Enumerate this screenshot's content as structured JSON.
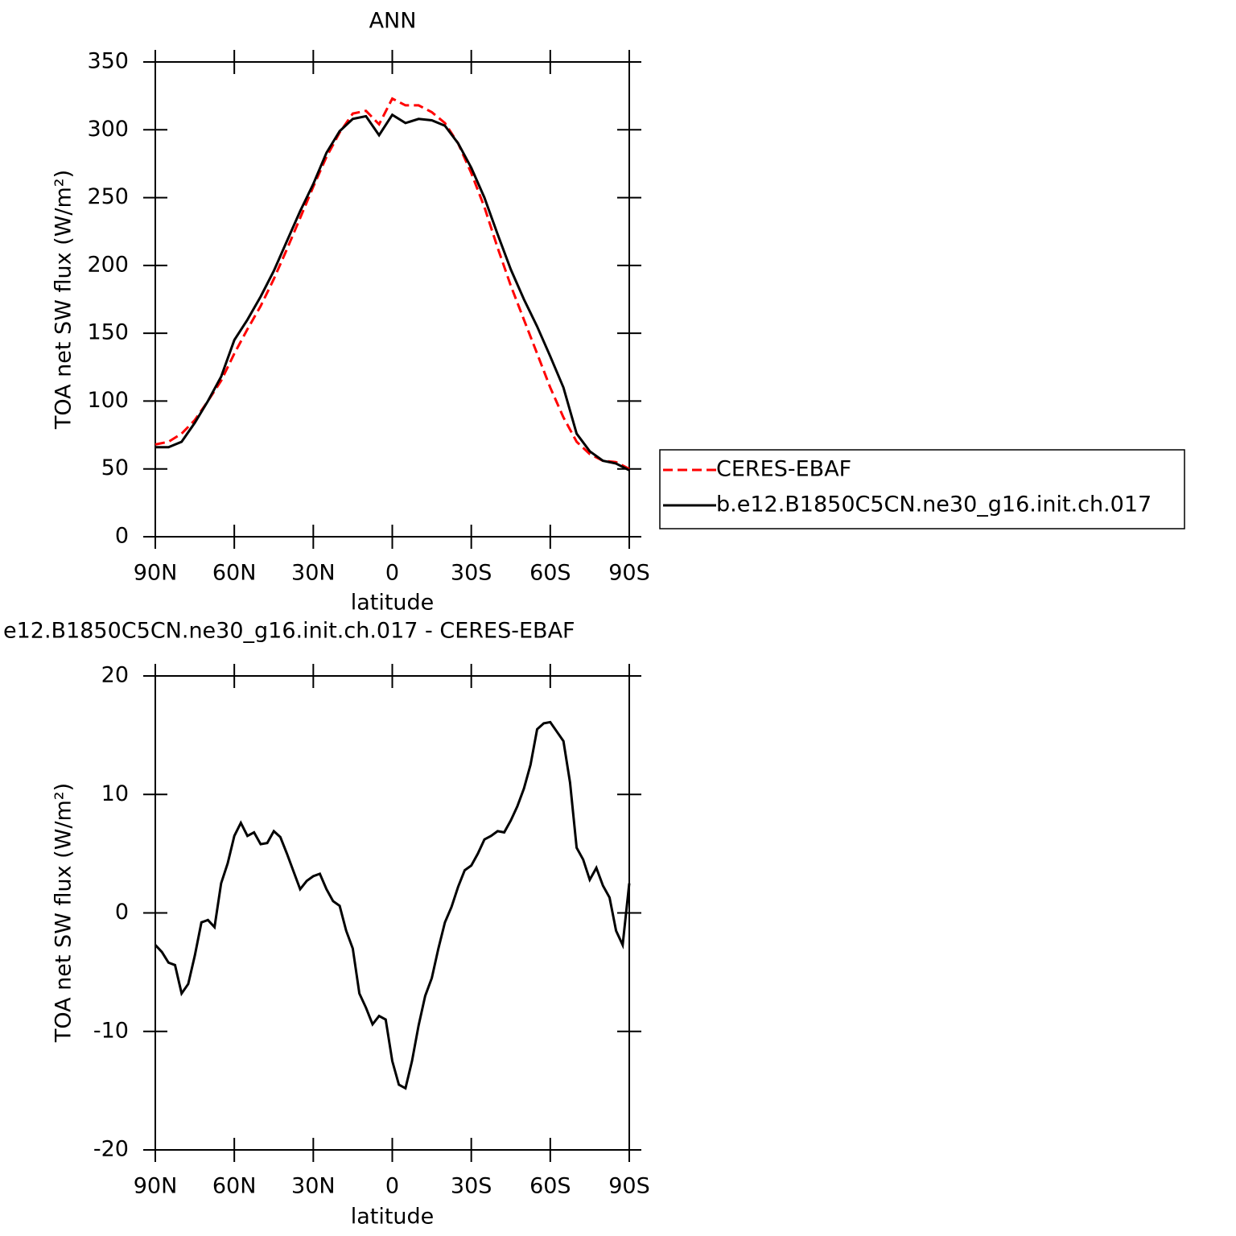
{
  "chart_data": [
    {
      "type": "line",
      "title": "ANN",
      "xlabel": "latitude",
      "ylabel": "TOA net SW flux (W/m²)",
      "x": [
        90,
        85,
        80,
        75,
        70,
        65,
        60,
        55,
        50,
        45,
        40,
        35,
        30,
        25,
        20,
        15,
        10,
        5,
        0,
        -5,
        -10,
        -15,
        -20,
        -25,
        -30,
        -35,
        -40,
        -45,
        -50,
        -55,
        -60,
        -65,
        -70,
        -75,
        -80,
        -85,
        -90
      ],
      "series": [
        {
          "name": "CERES-EBAF",
          "color": "#ff0000",
          "line_style": "dashed",
          "values": [
            68,
            70,
            76,
            86,
            100,
            115,
            135,
            153,
            170,
            190,
            212,
            235,
            258,
            280,
            298,
            312,
            314,
            304,
            323,
            318,
            318,
            313,
            305,
            290,
            268,
            243,
            213,
            185,
            160,
            135,
            110,
            88,
            70,
            61,
            56,
            55,
            50
          ]
        },
        {
          "name": "b.e12.B1850C5CN.ne30_g16.init.ch.017",
          "color": "#000000",
          "line_style": "solid",
          "values": [
            66,
            66,
            70,
            84,
            100,
            118,
            145,
            160,
            177,
            196,
            218,
            240,
            260,
            283,
            299,
            308,
            310,
            296,
            311,
            305,
            308,
            307,
            303,
            290,
            272,
            250,
            223,
            197,
            175,
            155,
            133,
            110,
            76,
            63,
            56,
            54,
            49
          ]
        }
      ],
      "xlim": [
        90,
        -90
      ],
      "xticks": [
        {
          "value": 90,
          "label": "90N"
        },
        {
          "value": 60,
          "label": "60N"
        },
        {
          "value": 30,
          "label": "30N"
        },
        0,
        {
          "value": -30,
          "label": "30S"
        },
        {
          "value": -60,
          "label": "60S"
        },
        {
          "value": -90,
          "label": "90S"
        }
      ],
      "ylim": [
        0,
        350
      ],
      "yticks": [
        0,
        50,
        100,
        150,
        200,
        250,
        300,
        350
      ],
      "grid": false,
      "legend": "right"
    },
    {
      "type": "line",
      "title": "e12.B1850C5CN.ne30_g16.init.ch.017 - CERES-EBAF",
      "xlabel": "latitude",
      "ylabel": "TOA net SW flux (W/m²)",
      "x": [
        90,
        87.5,
        85,
        82.5,
        80,
        77.5,
        75,
        72.5,
        70,
        67.5,
        65,
        62.5,
        60,
        57.5,
        55,
        52.5,
        50,
        47.5,
        45,
        42.5,
        40,
        37.5,
        35,
        32.5,
        30,
        27.5,
        25,
        22.5,
        20,
        17.5,
        15,
        12.5,
        10,
        7.5,
        5,
        2.5,
        0,
        -2.5,
        -5,
        -7.5,
        -10,
        -12.5,
        -15,
        -17.5,
        -20,
        -22.5,
        -25,
        -27.5,
        -30,
        -32.5,
        -35,
        -37.5,
        -40,
        -42.5,
        -45,
        -47.5,
        -50,
        -52.5,
        -55,
        -57.5,
        -60,
        -62.5,
        -65,
        -67.5,
        -70,
        -72.5,
        -75,
        -77.5,
        -80,
        -82.5,
        -85,
        -87.5,
        -90
      ],
      "values": [
        -2.7,
        -3.3,
        -4.2,
        -4.4,
        -6.8,
        -6.0,
        -3.6,
        -0.8,
        -0.6,
        -1.2,
        2.5,
        4.2,
        6.5,
        7.6,
        6.5,
        6.8,
        5.8,
        5.9,
        6.9,
        6.4,
        5.0,
        3.5,
        2.0,
        2.7,
        3.1,
        3.3,
        2.0,
        1.0,
        0.6,
        -1.5,
        -3.0,
        -6.8,
        -8.0,
        -9.4,
        -8.7,
        -9.0,
        -12.5,
        -14.5,
        -14.8,
        -12.5,
        -9.5,
        -7.0,
        -5.5,
        -3.0,
        -0.8,
        0.5,
        2.2,
        3.6,
        4.0,
        5.0,
        6.2,
        6.5,
        6.9,
        6.8,
        7.8,
        9.0,
        10.5,
        12.5,
        15.5,
        16.0,
        16.1,
        15.3,
        14.5,
        11.0,
        5.5,
        4.5,
        2.8,
        3.8,
        2.3,
        1.3,
        -1.5,
        -2.7,
        2.5
      ],
      "color": "#000000",
      "xlim": [
        90,
        -90
      ],
      "xticks": [
        {
          "value": 90,
          "label": "90N"
        },
        {
          "value": 60,
          "label": "60N"
        },
        {
          "value": 30,
          "label": "30N"
        },
        0,
        {
          "value": -30,
          "label": "30S"
        },
        {
          "value": -60,
          "label": "60S"
        },
        {
          "value": -90,
          "label": "90S"
        }
      ],
      "ylim": [
        -20,
        20
      ],
      "yticks": [
        -20,
        -10,
        0,
        10,
        20
      ],
      "grid": false
    }
  ]
}
